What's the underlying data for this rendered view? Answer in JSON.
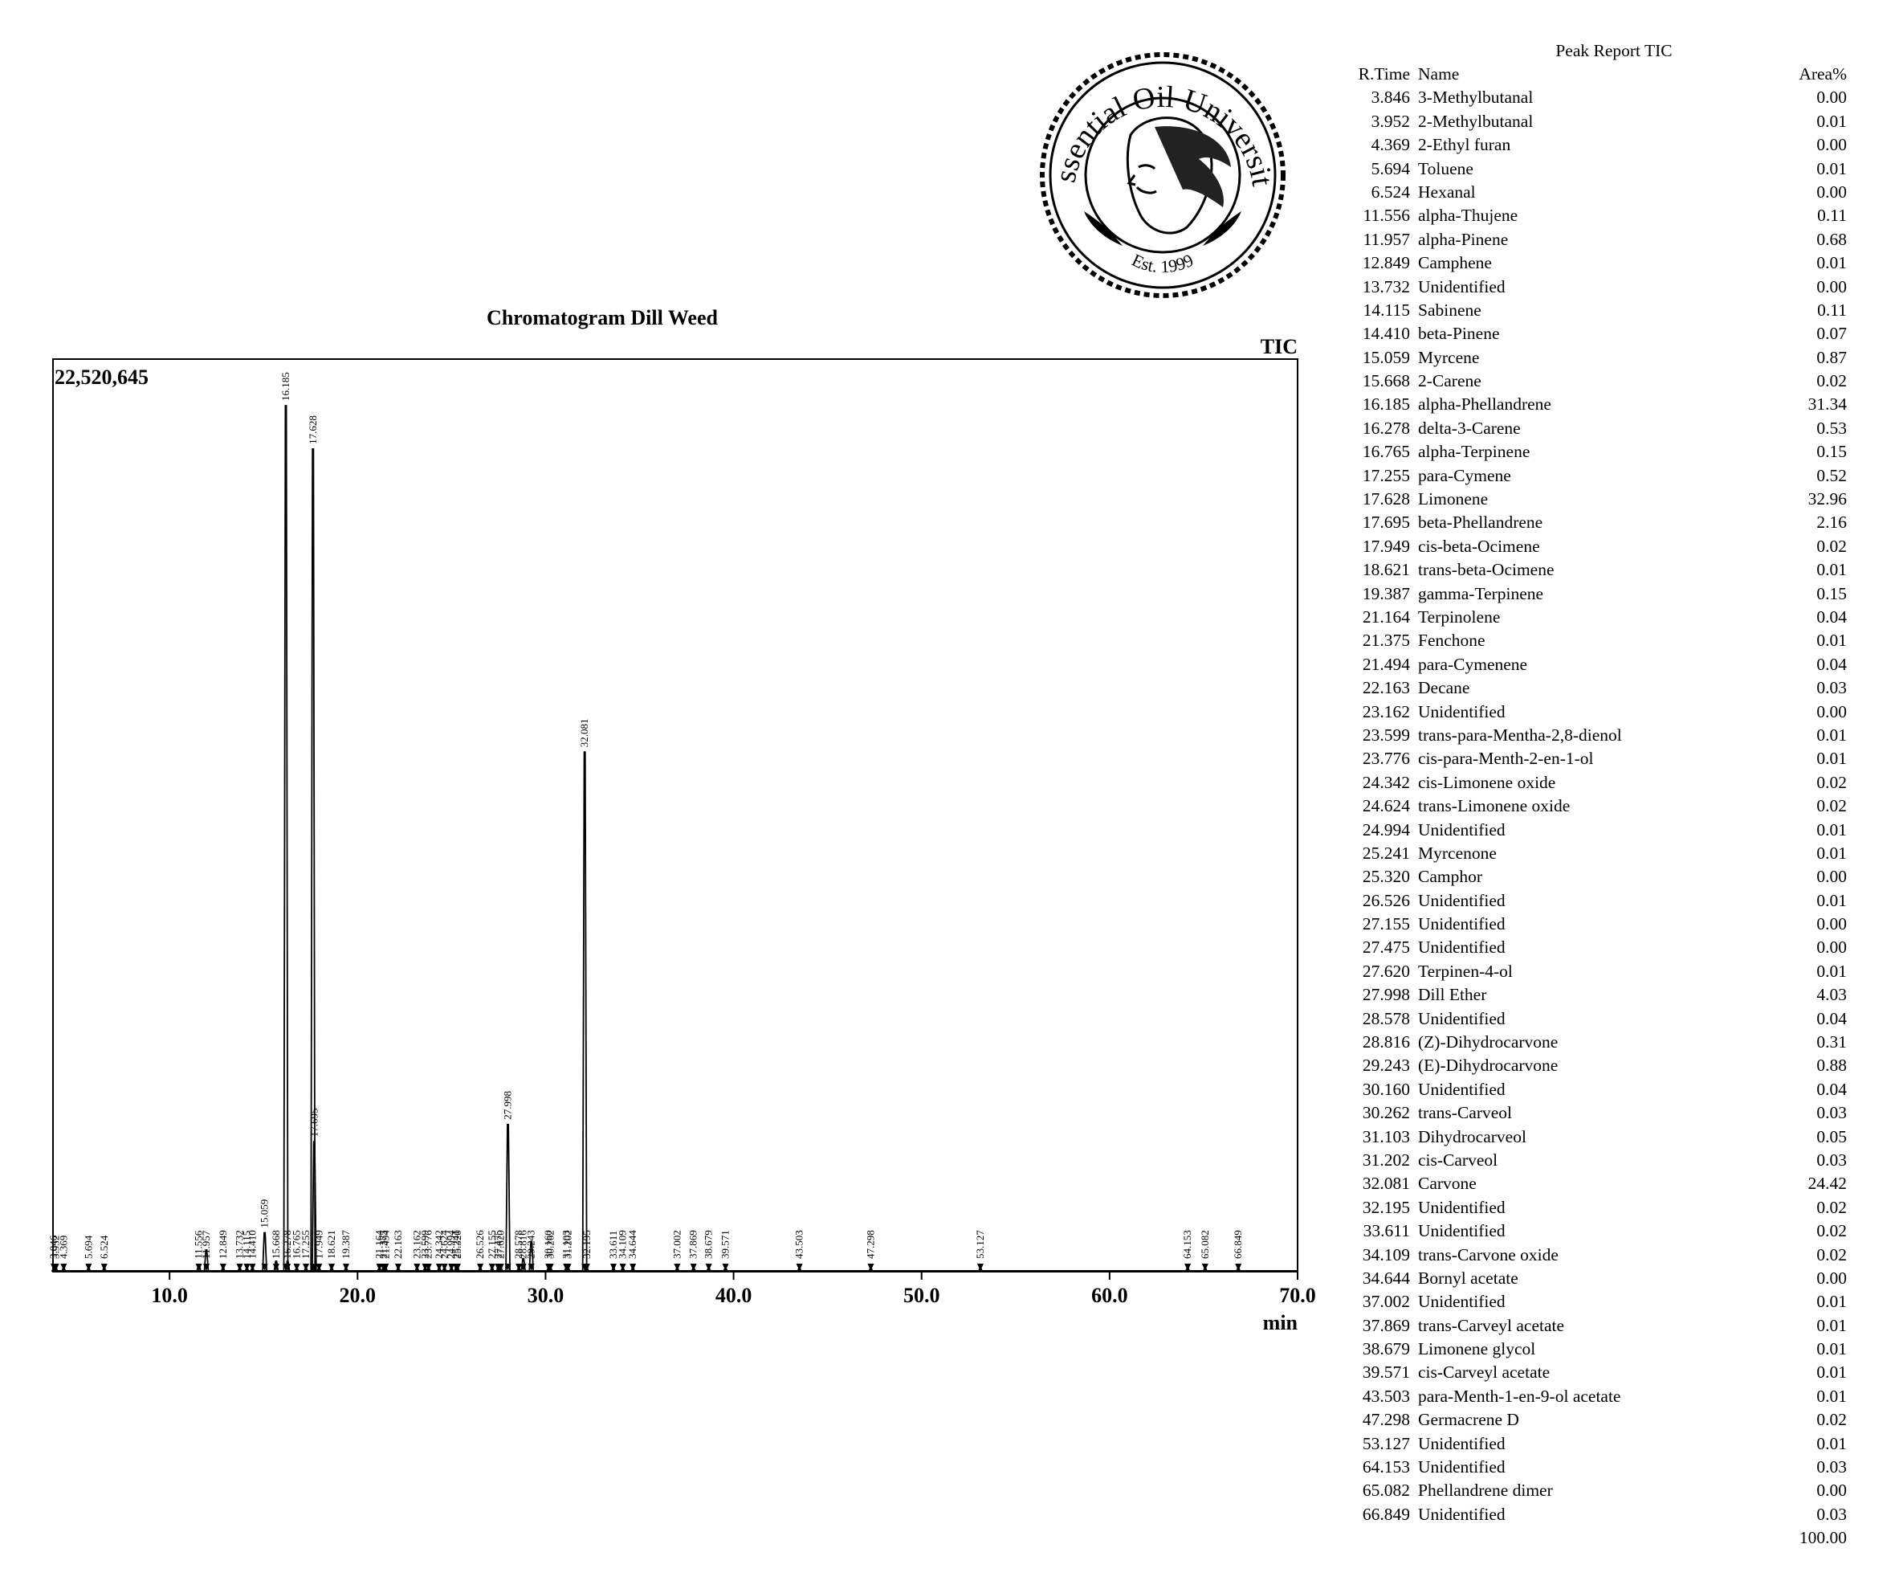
{
  "logo": {
    "text_top": "Essential Oil University",
    "text_bottom": "Est. 1999"
  },
  "chart_data": {
    "type": "line",
    "title": "Chromatogram Dill Weed",
    "detector_label": "TIC",
    "ymax_label": "22,520,645",
    "xlabel": "min",
    "xlim": [
      3.8,
      70.0
    ],
    "ylim": [
      0,
      22520645
    ],
    "xticks": [
      {
        "value": 10.0,
        "label": "10.0"
      },
      {
        "value": 20.0,
        "label": "20.0"
      },
      {
        "value": 30.0,
        "label": "30.0"
      },
      {
        "value": 40.0,
        "label": "40.0"
      },
      {
        "value": 50.0,
        "label": "50.0"
      },
      {
        "value": 60.0,
        "label": "60.0"
      },
      {
        "value": 70.0,
        "label": "70.0"
      }
    ],
    "peak_relative_heights": {
      "16.185": 1.0,
      "17.628": 0.95,
      "32.081": 0.6,
      "27.998": 0.17,
      "17.695": 0.15,
      "15.059": 0.045,
      "11.957": 0.025,
      "29.243": 0.035,
      "15.668": 0.012,
      "28.816": 0.015,
      "16.278": 0.012,
      "11.556": 0.008
    }
  },
  "peak_report": {
    "title": "Peak Report TIC",
    "headers": {
      "rtime": "R.Time",
      "name": "Name",
      "area": "Area%"
    },
    "rows": [
      {
        "rt": "3.846",
        "name": "3-Methylbutanal",
        "area": "0.00"
      },
      {
        "rt": "3.952",
        "name": "2-Methylbutanal",
        "area": "0.01"
      },
      {
        "rt": "4.369",
        "name": "2-Ethyl furan",
        "area": "0.00"
      },
      {
        "rt": "5.694",
        "name": "Toluene",
        "area": "0.01"
      },
      {
        "rt": "6.524",
        "name": "Hexanal",
        "area": "0.00"
      },
      {
        "rt": "11.556",
        "name": "alpha-Thujene",
        "area": "0.11"
      },
      {
        "rt": "11.957",
        "name": "alpha-Pinene",
        "area": "0.68"
      },
      {
        "rt": "12.849",
        "name": "Camphene",
        "area": "0.01"
      },
      {
        "rt": "13.732",
        "name": "Unidentified",
        "area": "0.00"
      },
      {
        "rt": "14.115",
        "name": "Sabinene",
        "area": "0.11"
      },
      {
        "rt": "14.410",
        "name": "beta-Pinene",
        "area": "0.07"
      },
      {
        "rt": "15.059",
        "name": "Myrcene",
        "area": "0.87"
      },
      {
        "rt": "15.668",
        "name": "2-Carene",
        "area": "0.02"
      },
      {
        "rt": "16.185",
        "name": "alpha-Phellandrene",
        "area": "31.34"
      },
      {
        "rt": "16.278",
        "name": "delta-3-Carene",
        "area": "0.53"
      },
      {
        "rt": "16.765",
        "name": "alpha-Terpinene",
        "area": "0.15"
      },
      {
        "rt": "17.255",
        "name": "para-Cymene",
        "area": "0.52"
      },
      {
        "rt": "17.628",
        "name": "Limonene",
        "area": "32.96"
      },
      {
        "rt": "17.695",
        "name": "beta-Phellandrene",
        "area": "2.16"
      },
      {
        "rt": "17.949",
        "name": "cis-beta-Ocimene",
        "area": "0.02"
      },
      {
        "rt": "18.621",
        "name": "trans-beta-Ocimene",
        "area": "0.01"
      },
      {
        "rt": "19.387",
        "name": "gamma-Terpinene",
        "area": "0.15"
      },
      {
        "rt": "21.164",
        "name": "Terpinolene",
        "area": "0.04"
      },
      {
        "rt": "21.375",
        "name": "Fenchone",
        "area": "0.01"
      },
      {
        "rt": "21.494",
        "name": "para-Cymenene",
        "area": "0.04"
      },
      {
        "rt": "22.163",
        "name": "Decane",
        "area": "0.03"
      },
      {
        "rt": "23.162",
        "name": "Unidentified",
        "area": "0.00"
      },
      {
        "rt": "23.599",
        "name": "trans-para-Mentha-2,8-dienol",
        "area": "0.01"
      },
      {
        "rt": "23.776",
        "name": "cis-para-Menth-2-en-1-ol",
        "area": "0.01"
      },
      {
        "rt": "24.342",
        "name": "cis-Limonene oxide",
        "area": "0.02"
      },
      {
        "rt": "24.624",
        "name": "trans-Limonene oxide",
        "area": "0.02"
      },
      {
        "rt": "24.994",
        "name": "Unidentified",
        "area": "0.01"
      },
      {
        "rt": "25.241",
        "name": "Myrcenone",
        "area": "0.01"
      },
      {
        "rt": "25.320",
        "name": "Camphor",
        "area": "0.00"
      },
      {
        "rt": "26.526",
        "name": "Unidentified",
        "area": "0.01"
      },
      {
        "rt": "27.155",
        "name": "Unidentified",
        "area": "0.00"
      },
      {
        "rt": "27.475",
        "name": "Unidentified",
        "area": "0.00"
      },
      {
        "rt": "27.620",
        "name": "Terpinen-4-ol",
        "area": "0.01"
      },
      {
        "rt": "27.998",
        "name": "Dill Ether",
        "area": "4.03"
      },
      {
        "rt": "28.578",
        "name": "Unidentified",
        "area": "0.04"
      },
      {
        "rt": "28.816",
        "name": "(Z)-Dihydrocarvone",
        "area": "0.31"
      },
      {
        "rt": "29.243",
        "name": "(E)-Dihydrocarvone",
        "area": "0.88"
      },
      {
        "rt": "30.160",
        "name": "Unidentified",
        "area": "0.04"
      },
      {
        "rt": "30.262",
        "name": "trans-Carveol",
        "area": "0.03"
      },
      {
        "rt": "31.103",
        "name": "Dihydrocarveol",
        "area": "0.05"
      },
      {
        "rt": "31.202",
        "name": "cis-Carveol",
        "area": "0.03"
      },
      {
        "rt": "32.081",
        "name": "Carvone",
        "area": "24.42"
      },
      {
        "rt": "32.195",
        "name": "Unidentified",
        "area": "0.02"
      },
      {
        "rt": "33.611",
        "name": "Unidentified",
        "area": "0.02"
      },
      {
        "rt": "34.109",
        "name": "trans-Carvone oxide",
        "area": "0.02"
      },
      {
        "rt": "34.644",
        "name": "Bornyl acetate",
        "area": "0.00"
      },
      {
        "rt": "37.002",
        "name": "Unidentified",
        "area": "0.01"
      },
      {
        "rt": "37.869",
        "name": "trans-Carveyl acetate",
        "area": "0.01"
      },
      {
        "rt": "38.679",
        "name": "Limonene glycol",
        "area": "0.01"
      },
      {
        "rt": "39.571",
        "name": "cis-Carveyl acetate",
        "area": "0.01"
      },
      {
        "rt": "43.503",
        "name": "para-Menth-1-en-9-ol acetate",
        "area": "0.01"
      },
      {
        "rt": "47.298",
        "name": "Germacrene D",
        "area": "0.02"
      },
      {
        "rt": "53.127",
        "name": "Unidentified",
        "area": "0.01"
      },
      {
        "rt": "64.153",
        "name": "Unidentified",
        "area": "0.03"
      },
      {
        "rt": "65.082",
        "name": "Phellandrene dimer",
        "area": "0.00"
      },
      {
        "rt": "66.849",
        "name": "Unidentified",
        "area": "0.03"
      }
    ],
    "total": "100.00"
  }
}
